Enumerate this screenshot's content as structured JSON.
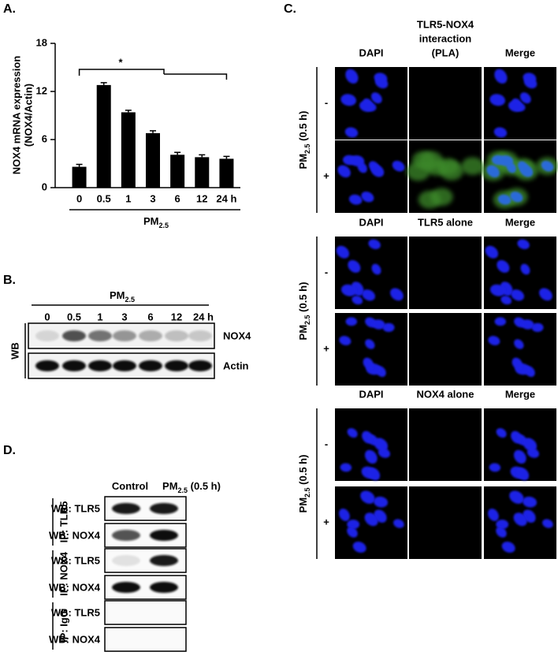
{
  "chart_data": {
    "type": "bar",
    "panel_label": "A.",
    "y_label": [
      "NOX4 mRNA expression",
      "(NOX4/Actin)"
    ],
    "x_label": {
      "base": "PM",
      "sub": "2.5"
    },
    "categories": [
      "0",
      "0.5",
      "1",
      "3",
      "6",
      "12",
      "24 h"
    ],
    "values": [
      2.6,
      12.8,
      9.4,
      6.8,
      4.1,
      3.8,
      3.6
    ],
    "errors": [
      0.3,
      0.3,
      0.25,
      0.3,
      0.3,
      0.3,
      0.3
    ],
    "color": "#000000",
    "ylim": [
      0,
      18
    ],
    "yticks": [
      0,
      6,
      12,
      18
    ],
    "annotations": [
      "*"
    ]
  },
  "panel_b": {
    "label": "B.",
    "treatment": {
      "base": "PM",
      "sub": "2.5"
    },
    "lanes": [
      "0",
      "0.5",
      "1",
      "3",
      "6",
      "12",
      "24 h"
    ],
    "side_label": "WB",
    "rows": [
      "NOX4",
      "Actin"
    ]
  },
  "panel_c": {
    "label": "C.",
    "treatment": {
      "base": "PM",
      "sub": "2.5",
      "suffix": " (0.5 h)"
    },
    "conditions": [
      "-",
      "+"
    ],
    "blocks": [
      {
        "columns": [
          [
            "DAPI"
          ],
          [
            "TLR5-NOX4",
            "interaction",
            "(PLA)"
          ],
          [
            "Merge"
          ]
        ]
      },
      {
        "columns": [
          [
            "DAPI"
          ],
          [
            "TLR5 alone"
          ],
          [
            "Merge"
          ]
        ]
      },
      {
        "columns": [
          [
            "DAPI"
          ],
          [
            "NOX4 alone"
          ],
          [
            "Merge"
          ]
        ]
      }
    ]
  },
  "panel_d": {
    "label": "D.",
    "columns": [
      {
        "base": "Control"
      },
      {
        "base": "PM",
        "sub": "2.5",
        "suffix": " (0.5 h)"
      }
    ],
    "groups": [
      {
        "ip": "IP: TLR5",
        "rows": [
          "WB: TLR5",
          "WB: NOX4"
        ]
      },
      {
        "ip": "IP: NOX4",
        "rows": [
          "WB: TLR5",
          "WB: NOX4"
        ]
      },
      {
        "ip": "IP: IgG",
        "rows": [
          "WB: TLR5",
          "WB: NOX4"
        ]
      }
    ]
  }
}
